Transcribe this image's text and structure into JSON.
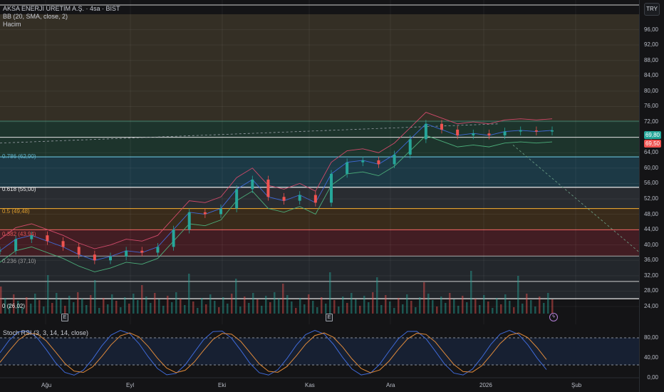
{
  "header": {
    "title": "AKSA ENERJİ ÜRETİM A.Ş. · 4sa · BIST",
    "bb_label": "BB (20, SMA, close, 2)",
    "volume_label": "Hacim",
    "stoch_label": "Stoch RSI (3, 3, 14, 14, close)"
  },
  "currency": "TRY",
  "price_tags": [
    {
      "value": "69,80",
      "color": "#26a69a"
    },
    {
      "value": "69,50",
      "color": "#ef5350"
    }
  ],
  "fib_levels": [
    {
      "label": "0.786 (62,90)",
      "value": 62.9,
      "color": "#5fb0c8"
    },
    {
      "label": "0.618 (55,00)",
      "value": 55.0,
      "color": "#e8e8e8"
    },
    {
      "label": "0.5 (49,48)",
      "value": 49.48,
      "color": "#e0a030"
    },
    {
      "label": "0.382 (43,94)",
      "value": 43.94,
      "color": "#e05555"
    },
    {
      "label": "0.236 (37,10)",
      "value": 37.1,
      "color": "#9a9a9a"
    },
    {
      "label": "0 (26,02)",
      "value": 26.02,
      "color": "#e8e8e8"
    }
  ],
  "chart_data": {
    "type": "line",
    "title": "AKSA ENERJİ ÜRETİM A.Ş. · 4sa · BIST",
    "x_tick_labels": [
      "Ağu",
      "Eyl",
      "Eki",
      "Kas",
      "Ara",
      "2026",
      "Şub"
    ],
    "y_tick_labels": [
      "96,00",
      "92,00",
      "88,00",
      "84,00",
      "80,00",
      "76,00",
      "72,00",
      "68,00",
      "64,00",
      "60,00",
      "56,00",
      "52,00",
      "48,00",
      "44,00",
      "40,00",
      "36,00",
      "32,00",
      "28,00",
      "24,00"
    ],
    "ylim": [
      24,
      100
    ],
    "stoch_ticks": [
      "80,00",
      "40,00",
      "0,00"
    ],
    "stoch_ylim": [
      0,
      100
    ],
    "series": [
      {
        "name": "close",
        "x": [
          "Ağu",
          "",
          "",
          "",
          "",
          "",
          "Eyl",
          "",
          "",
          "",
          "",
          "",
          "Eki",
          "",
          "",
          "",
          "",
          "",
          "Kas",
          "",
          "",
          "",
          "",
          "",
          "Ara",
          "",
          "",
          "",
          "",
          "",
          "2026",
          "",
          "",
          "",
          "",
          ""
        ],
        "values": [
          38.5,
          41.5,
          42.5,
          41.0,
          39.5,
          37.5,
          36.0,
          37.0,
          38.5,
          38.0,
          39.5,
          44.0,
          48.5,
          48.0,
          49.5,
          54.5,
          57.0,
          52.5,
          51.5,
          53.0,
          51.0,
          58.5,
          61.5,
          62.0,
          61.0,
          63.5,
          67.5,
          71.5,
          70.0,
          68.5,
          69.0,
          68.5,
          69.5,
          69.8,
          69.5,
          69.8
        ]
      }
    ],
    "grid": true,
    "legend": "top-left"
  }
}
